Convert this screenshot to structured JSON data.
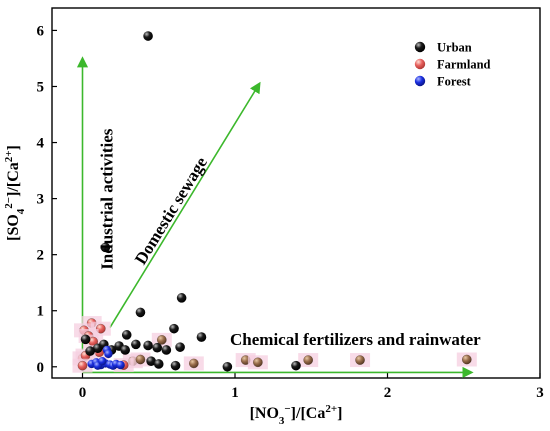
{
  "chart_data": {
    "type": "scatter",
    "xlim": [
      -0.2,
      3.0
    ],
    "ylim": [
      -0.2,
      6.4
    ],
    "x_ticks": [
      0,
      1,
      2,
      3
    ],
    "y_ticks": [
      0,
      1,
      2,
      3,
      4,
      5,
      6
    ],
    "x_tick_labels": [
      "0",
      "1",
      "2",
      "3"
    ],
    "y_tick_labels": [
      "0",
      "1",
      "2",
      "3",
      "4",
      "5",
      "6"
    ],
    "xlabel": "[NO3−]/[Ca2+]",
    "ylabel": "[SO42−]/[Ca2+]",
    "grid": false,
    "legend_position": "top-right",
    "legend": [
      {
        "name": "Urban",
        "color": "#111111"
      },
      {
        "name": "Farmland",
        "color": "#e8615e"
      },
      {
        "name": "Forest",
        "color": "#1a2fe0"
      }
    ],
    "annotations": [
      {
        "text": "Industrial activities",
        "from": [
          0.0,
          0.3
        ],
        "to": [
          0.0,
          5.5
        ]
      },
      {
        "text": "Domestic sewage",
        "from": [
          0.18,
          0.7
        ],
        "to": [
          1.16,
          5.05
        ]
      },
      {
        "text": "Chemical fertilizers and rainwater",
        "from": [
          0.0,
          -0.1
        ],
        "to": [
          2.55,
          -0.1
        ]
      }
    ],
    "series": [
      {
        "name": "Urban",
        "color": "#111111",
        "points": [
          [
            0.43,
            5.9
          ],
          [
            0.15,
            2.13
          ],
          [
            0.65,
            1.23
          ],
          [
            0.38,
            0.97
          ],
          [
            0.6,
            0.68
          ],
          [
            0.78,
            0.53
          ],
          [
            0.29,
            0.57
          ],
          [
            0.02,
            0.49
          ],
          [
            0.1,
            0.33
          ],
          [
            0.05,
            0.28
          ],
          [
            0.14,
            0.4
          ],
          [
            0.19,
            0.3
          ],
          [
            0.24,
            0.37
          ],
          [
            0.28,
            0.3
          ],
          [
            0.35,
            0.4
          ],
          [
            0.43,
            0.38
          ],
          [
            0.49,
            0.34
          ],
          [
            0.55,
            0.3
          ],
          [
            0.64,
            0.35
          ],
          [
            0.45,
            0.1
          ],
          [
            0.5,
            0.05
          ],
          [
            0.61,
            0.02
          ],
          [
            0.95,
            0.0
          ],
          [
            1.4,
            0.02
          ]
        ]
      },
      {
        "name": "Farmland",
        "color": "#c97064",
        "points": [
          [
            0.06,
            0.78
          ],
          [
            0.01,
            0.65
          ],
          [
            0.12,
            0.68
          ],
          [
            0.04,
            0.55
          ],
          [
            0.07,
            0.45
          ],
          [
            0.11,
            0.26
          ],
          [
            0.0,
            0.15
          ],
          [
            0.02,
            0.2
          ],
          [
            0.33,
            0.1
          ],
          [
            0.38,
            0.13
          ],
          [
            0.52,
            0.48
          ],
          [
            0.73,
            0.06
          ],
          [
            1.07,
            0.12
          ],
          [
            1.15,
            0.08
          ],
          [
            1.48,
            0.12
          ],
          [
            1.82,
            0.12
          ],
          [
            2.52,
            0.13
          ],
          [
            0.0,
            0.02
          ],
          [
            0.27,
            0.03
          ]
        ]
      },
      {
        "name": "Forest",
        "color": "#1a2fe0",
        "points": [
          [
            0.06,
            0.05
          ],
          [
            0.09,
            0.08
          ],
          [
            0.12,
            0.03
          ],
          [
            0.15,
            0.06
          ],
          [
            0.18,
            0.04
          ],
          [
            0.2,
            0.02
          ],
          [
            0.22,
            0.05
          ],
          [
            0.25,
            0.03
          ],
          [
            0.16,
            0.3
          ],
          [
            0.17,
            0.23
          ],
          [
            0.1,
            0.02
          ],
          [
            0.13,
            0.1
          ]
        ]
      }
    ]
  }
}
